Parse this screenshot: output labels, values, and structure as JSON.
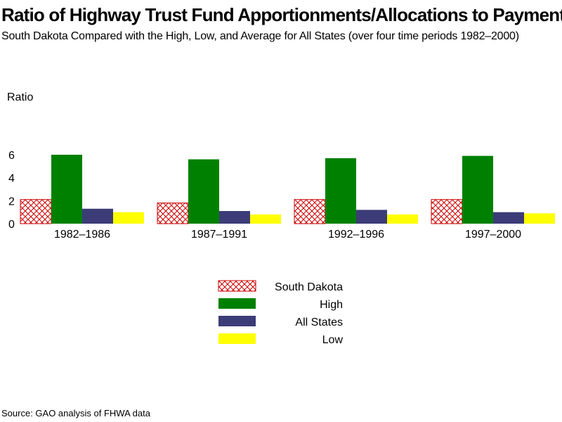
{
  "title": "Ratio of Highway Trust Fund Apportionments/Allocations to Payments",
  "subtitle": "South Dakota Compared with the High, Low, and Average for All States (over four time periods 1982–2000)",
  "source": "Source: GAO analysis of FHWA data",
  "chart_data": {
    "type": "bar",
    "ylabel": "Ratio",
    "xlabel": "",
    "ylim": [
      0,
      6
    ],
    "yticks": [
      0,
      2,
      4,
      6
    ],
    "categories": [
      "1982–1986",
      "1987–1991",
      "1992–1996",
      "1997–2000"
    ],
    "series": [
      {
        "name": "South Dakota",
        "color": "#cc0000",
        "pattern": "crosshatch",
        "values": [
          2.1,
          1.8,
          2.1,
          2.1
        ]
      },
      {
        "name": "High",
        "color": "#008000",
        "values": [
          6.0,
          5.6,
          5.7,
          5.9
        ]
      },
      {
        "name": "All States",
        "color": "#3c3c78",
        "values": [
          1.3,
          1.1,
          1.2,
          1.0
        ]
      },
      {
        "name": "Low",
        "color": "#ffff00",
        "values": [
          1.0,
          0.8,
          0.8,
          0.9
        ]
      }
    ],
    "grid": false,
    "legend_position": "bottom-center"
  }
}
